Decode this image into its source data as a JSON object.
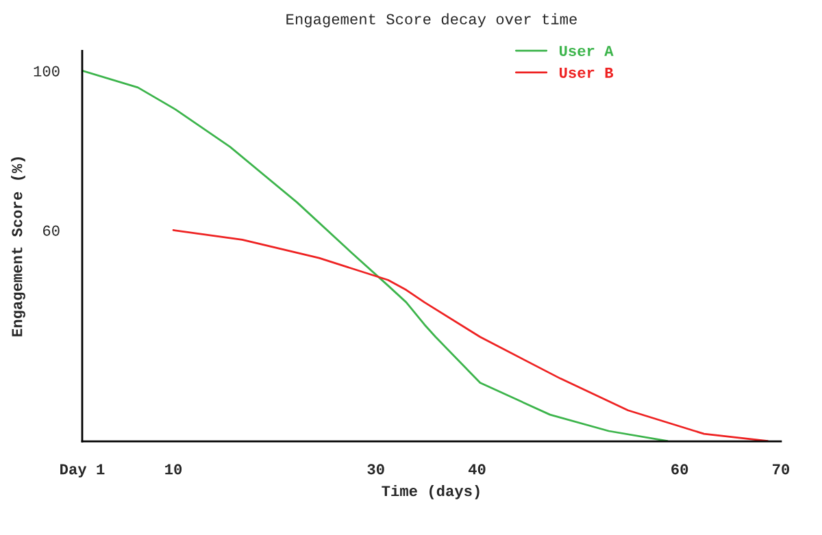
{
  "chart_data": {
    "type": "line",
    "title": "Engagement Score decay over time",
    "xlabel": "Time (days)",
    "ylabel": "Engagement Score (%)",
    "xlim": [
      1,
      70
    ],
    "xticks": [
      {
        "value": 1,
        "label": "Day 1"
      },
      10,
      30,
      40,
      60,
      70
    ],
    "ylim": [
      7,
      105
    ],
    "yticks": [
      60,
      100
    ],
    "grid": false,
    "legend": "top right",
    "marker": "none",
    "line_style": "solid",
    "series": [
      {
        "name": "User A",
        "color": "#3cb44b",
        "x": [
          1,
          6.5,
          10.2,
          15.6,
          22.2,
          27.7,
          31.2,
          33.0,
          34.8,
          35.9,
          40.3,
          47.2,
          53.0,
          58.8
        ],
        "values": [
          100,
          95.8,
          90.3,
          80.9,
          67.0,
          54.1,
          46.1,
          41.9,
          36.3,
          33.2,
          21.7,
          13.7,
          9.6,
          7.1
        ]
      },
      {
        "name": "User B",
        "color": "#ee2222",
        "x": [
          10,
          16.8,
          24.4,
          31.2,
          33.0,
          34.8,
          40.3,
          48.2,
          54.9,
          62.4,
          68.7
        ],
        "values": [
          60,
          57.6,
          53.0,
          47.5,
          45.0,
          41.9,
          33.2,
          22.8,
          14.8,
          8.9,
          7.1
        ]
      }
    ]
  }
}
